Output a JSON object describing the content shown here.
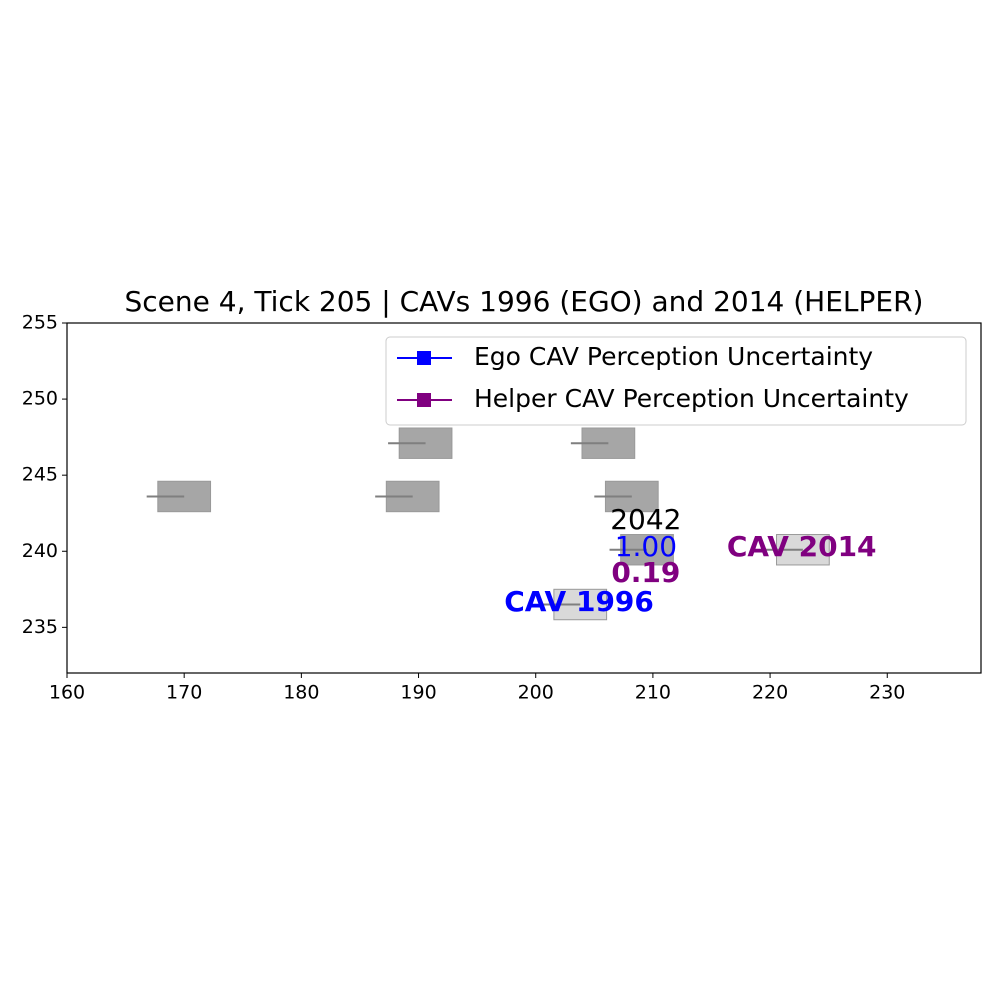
{
  "chart_data": {
    "type": "vehicles",
    "title": "Scene 4, Tick 205 | CAVs 1996 (EGO) and 2014 (HELPER)",
    "xlim": [
      160,
      238
    ],
    "ylim": [
      232,
      255
    ],
    "xticks": [
      160,
      170,
      180,
      190,
      200,
      210,
      220,
      230
    ],
    "yticks": [
      235,
      240,
      245,
      250,
      255
    ],
    "series": [
      {
        "name": "Ego CAV Perception Uncertainty",
        "color": "#0000ff"
      },
      {
        "name": "Helper CAV Perception Uncertainty",
        "color": "#800080"
      }
    ],
    "legend": "upper right",
    "vehicles": [
      {
        "x": 170.0,
        "y": 243.6,
        "length": 4.5,
        "width": 2,
        "tail": 166.8,
        "color": "#a6a6a6"
      },
      {
        "x": 189.5,
        "y": 243.6,
        "length": 4.5,
        "width": 2,
        "tail": 186.3,
        "color": "#a6a6a6"
      },
      {
        "x": 190.6,
        "y": 247.1,
        "length": 4.5,
        "width": 2,
        "tail": 187.4,
        "color": "#a6a6a6"
      },
      {
        "x": 206.2,
        "y": 247.1,
        "length": 4.5,
        "width": 2,
        "tail": 203.0,
        "color": "#a6a6a6"
      },
      {
        "x": 208.2,
        "y": 243.6,
        "length": 4.5,
        "width": 2,
        "tail": 205.0,
        "color": "#a6a6a6"
      },
      {
        "x": 209.5,
        "y": 240.1,
        "length": 4.5,
        "width": 2,
        "tail": 206.3,
        "color": "#a6a6a6"
      },
      {
        "x": 203.8,
        "y": 236.5,
        "length": 4.5,
        "width": 2,
        "tail": 200.6,
        "color": "#d9d9d9"
      },
      {
        "x": 222.8,
        "y": 240.1,
        "length": 4.5,
        "width": 2,
        "tail": 219.6,
        "color": "#d9d9d9"
      }
    ],
    "annotations": [
      {
        "text": "2042",
        "x": 209.4,
        "y": 242.0,
        "color": "#000000",
        "bold": false
      },
      {
        "text": "1.00",
        "x": 209.4,
        "y": 240.2,
        "color": "#0000ff",
        "bold": false
      },
      {
        "text": "0.19",
        "x": 209.4,
        "y": 238.5,
        "color": "#800080",
        "bold": true
      },
      {
        "text": "CAV 1996",
        "x": 203.7,
        "y": 236.6,
        "color": "#0000ff",
        "bold": true
      },
      {
        "text": "CAV 2014",
        "x": 222.7,
        "y": 240.2,
        "color": "#800080",
        "bold": true
      }
    ]
  }
}
